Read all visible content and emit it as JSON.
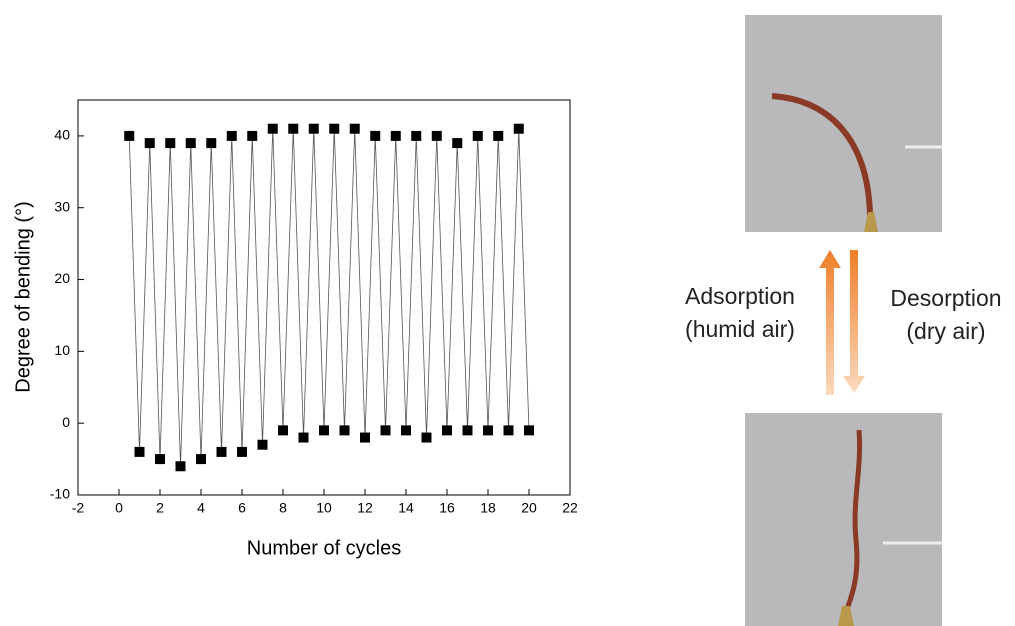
{
  "chart_data": {
    "type": "line",
    "x_label": "Number of cycles",
    "y_label": "Degree of bending (°)",
    "x": [
      0.5,
      1,
      1.5,
      2,
      2.5,
      3,
      3.5,
      4,
      4.5,
      5,
      5.5,
      6,
      6.5,
      7,
      7.5,
      8,
      8.5,
      9,
      9.5,
      10,
      10.5,
      11,
      11.5,
      12,
      12.5,
      13,
      13.5,
      14,
      14.5,
      15,
      15.5,
      16,
      16.5,
      17,
      17.5,
      18,
      18.5,
      19,
      19.5,
      20
    ],
    "series": [
      {
        "color": "#000000",
        "values": [
          40,
          -4,
          39,
          -5,
          39,
          -6,
          39,
          -5,
          39,
          -4,
          40,
          -4,
          40,
          -3,
          41,
          -1,
          41,
          -2,
          41,
          -1,
          41,
          -1,
          41,
          -2,
          40,
          -1,
          40,
          -1,
          40,
          -2,
          40,
          -1,
          39,
          -1,
          40,
          -1,
          40,
          -1,
          41,
          -1
        ]
      }
    ],
    "xlim": [
      -2,
      22
    ],
    "xticks": [
      -2,
      0,
      2,
      4,
      6,
      8,
      10,
      12,
      14,
      16,
      18,
      20,
      22
    ],
    "ylim": [
      -10,
      45
    ],
    "yticks": [
      -10,
      0,
      10,
      20,
      30,
      40
    ],
    "annotations": [
      "Adsorption",
      "(humid air)",
      "Desorption",
      "(dry air)"
    ]
  }
}
